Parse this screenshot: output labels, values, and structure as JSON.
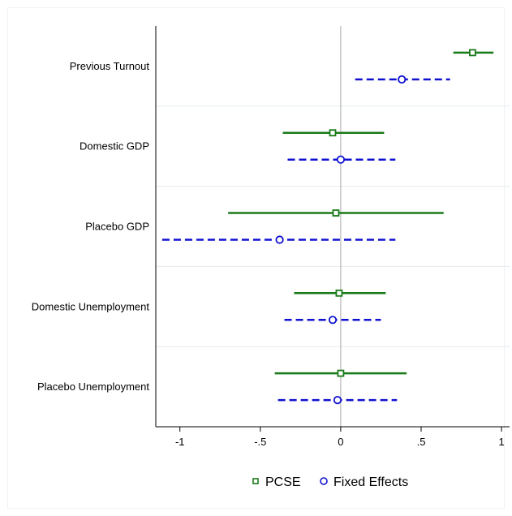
{
  "chart_data": {
    "type": "coefficient-plot",
    "orientation": "horizontal",
    "categories": [
      "Previous Turnout",
      "Domestic GDP",
      "Placebo GDP",
      "Domestic Unemployment",
      "Placebo Unemployment"
    ],
    "series": [
      {
        "name": "PCSE",
        "color": "#1a7a1a",
        "marker": "square",
        "line_style": "solid",
        "estimates": [
          0.82,
          -0.05,
          -0.03,
          -0.01,
          0.0
        ],
        "ci_low": [
          0.7,
          -0.36,
          -0.7,
          -0.29,
          -0.41
        ],
        "ci_high": [
          0.95,
          0.27,
          0.64,
          0.28,
          0.41
        ]
      },
      {
        "name": "Fixed Effects",
        "color": "#1010d0",
        "marker": "circle",
        "line_style": "dashed",
        "estimates": [
          0.38,
          0.0,
          -0.38,
          -0.05,
          -0.02
        ],
        "ci_low": [
          0.09,
          -0.33,
          -1.11,
          -0.35,
          -0.39
        ],
        "ci_high": [
          0.68,
          0.34,
          0.34,
          0.25,
          0.35
        ]
      }
    ],
    "x_ticks": [
      -1,
      -0.5,
      0,
      0.5,
      1
    ],
    "x_tick_labels": [
      "-1",
      "-.5",
      "0",
      ".5",
      "1"
    ],
    "xlim": [
      -1.15,
      1.05
    ],
    "reference_line": 0,
    "legend_position": "bottom"
  }
}
